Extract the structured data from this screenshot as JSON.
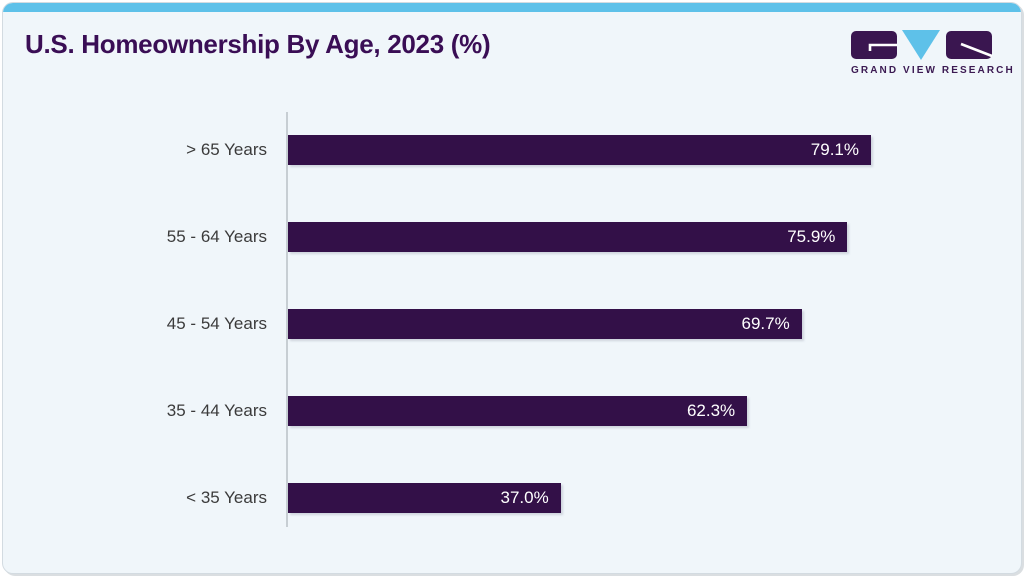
{
  "header": {
    "title": "U.S. Homeownership By Age, 2023 (%)",
    "logo_text": "GRAND VIEW RESEARCH"
  },
  "chart_data": {
    "type": "bar",
    "orientation": "horizontal",
    "title": "U.S. Homeownership By Age, 2023 (%)",
    "categories": [
      "> 65 Years",
      "55 - 64 Years",
      "45 - 54 Years",
      "35 - 44 Years",
      "< 35 Years"
    ],
    "values": [
      79.1,
      75.9,
      69.7,
      62.3,
      37.0
    ],
    "value_labels": [
      "79.1%",
      "75.9%",
      "69.7%",
      "62.3%",
      "37.0%"
    ],
    "xlabel": "",
    "ylabel": "",
    "xlim": [
      0,
      98.5
    ],
    "grid": false,
    "legend": false,
    "bar_color": "#331048",
    "value_label_color": "#ffffff",
    "value_label_position": "inside-right"
  },
  "colors": {
    "accent_blue": "#5ec1e9",
    "bar_purple": "#331048",
    "title_purple": "#3a0e55",
    "logo_purple": "#3b1a52",
    "card_background": "#f0f6fa",
    "axis_line": "#c7ced3",
    "label_text": "#3b3b3b"
  }
}
